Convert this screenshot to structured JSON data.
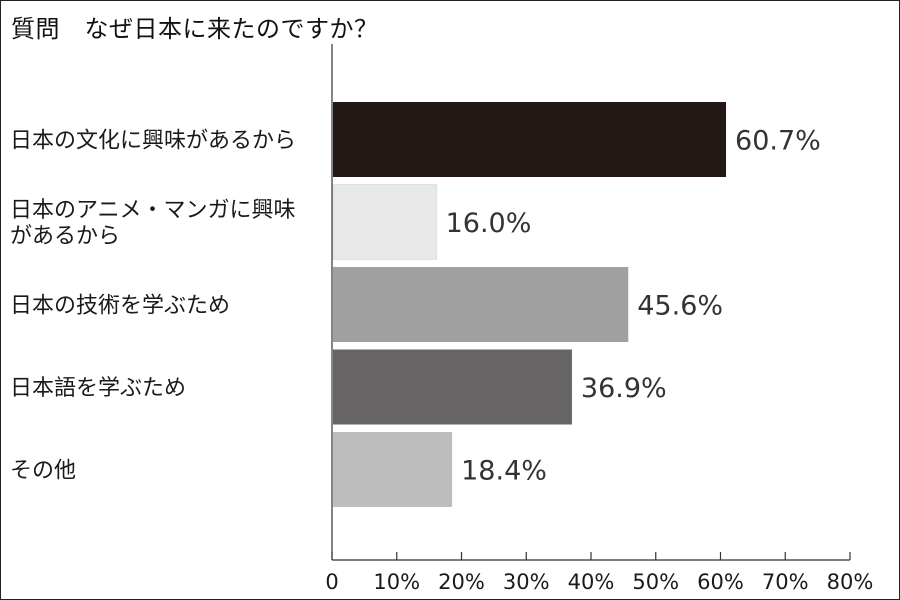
{
  "title": "質問　なぜ日本に来たのですか？",
  "chart_data": {
    "type": "bar",
    "orientation": "horizontal",
    "title": "質問　なぜ日本に来たのですか？",
    "categories": [
      [
        "日本の文化に興味があるから"
      ],
      [
        "日本のアニメ・マンガに興味",
        "があるから"
      ],
      [
        "日本の技術を学ぶため"
      ],
      [
        "日本語を学ぶため"
      ],
      [
        "その他"
      ]
    ],
    "values": [
      60.7,
      16.0,
      45.6,
      36.9,
      18.4
    ],
    "value_labels": [
      "60.7%",
      "16.0%",
      "45.6%",
      "36.9%",
      "18.4%"
    ],
    "bar_colors": [
      "#231815",
      "#e8e8e8",
      "#a0a0a0",
      "#666464",
      "#bdbdbd"
    ],
    "xlim": [
      0,
      80
    ],
    "xticks": [
      0,
      10,
      20,
      30,
      40,
      50,
      60,
      70,
      80
    ],
    "xtick_labels": [
      "0",
      "10%",
      "20%",
      "30%",
      "40%",
      "50%",
      "60%",
      "70%",
      "80%"
    ],
    "grid": false,
    "legend": "none"
  }
}
